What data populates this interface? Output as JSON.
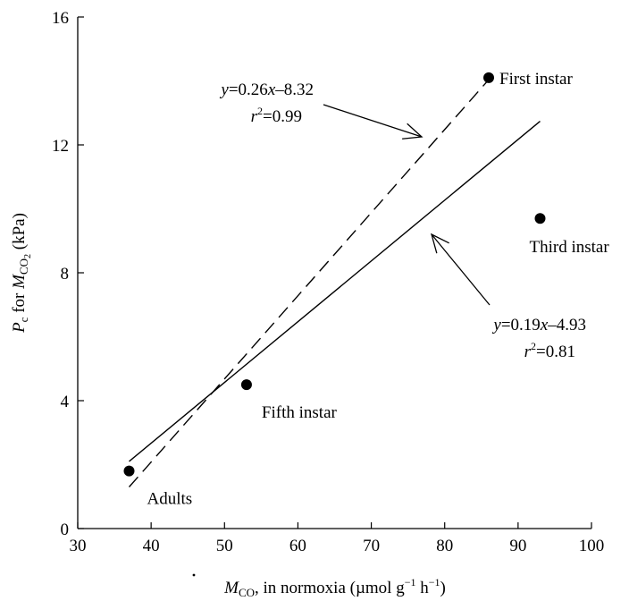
{
  "chart_data": {
    "type": "scatter",
    "title": "",
    "xlabel": "Ṁ_CO₂ in normoxia (µmol g⁻¹ h⁻¹)",
    "ylabel": "P_c for Ṁ_CO₂ (kPa)",
    "xlim": [
      30,
      100
    ],
    "ylim": [
      0,
      16
    ],
    "xticks": [
      30,
      40,
      50,
      60,
      70,
      80,
      90,
      100
    ],
    "yticks": [
      0,
      4,
      8,
      12,
      16
    ],
    "grid": false,
    "legend": "none",
    "points": [
      {
        "label": "Adults",
        "x": 37,
        "y": 1.8
      },
      {
        "label": "Fifth instar",
        "x": 53,
        "y": 4.5
      },
      {
        "label": "First instar",
        "x": 86,
        "y": 14.1
      },
      {
        "label": "Third instar",
        "x": 93,
        "y": 9.7
      }
    ],
    "fits": [
      {
        "style": "dashed",
        "slope": 0.26,
        "intercept": -8.32,
        "x_range": [
          37,
          86
        ],
        "equation": "y=0.26x–8.32",
        "r2_text": "r²=0.99"
      },
      {
        "style": "solid",
        "slope": 0.19,
        "intercept": -4.93,
        "x_range": [
          37,
          93
        ],
        "equation": "y=0.19x–4.93",
        "r2_text": "r²=0.81"
      }
    ]
  }
}
